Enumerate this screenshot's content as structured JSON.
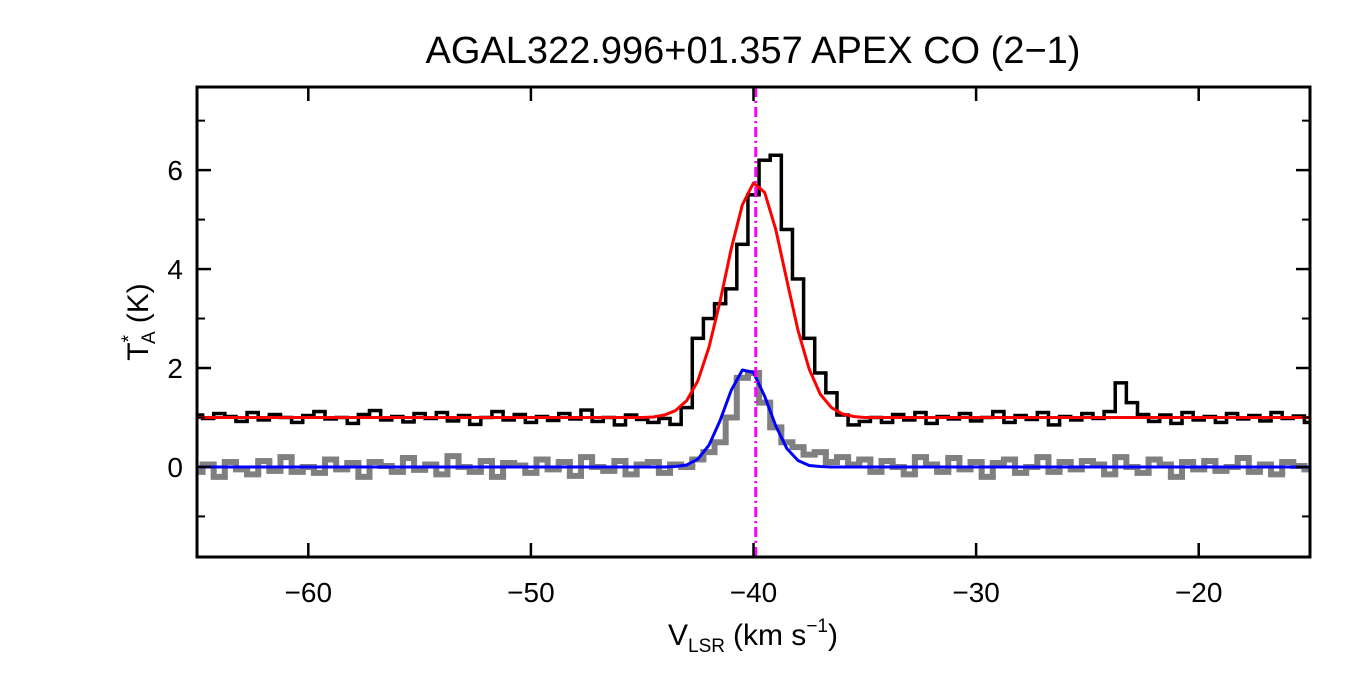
{
  "chart_data": {
    "type": "line",
    "title": "AGAL322.996+01.357  APEX CO (2−1)",
    "x_label": {
      "main": "V",
      "sub": "LSR",
      "unit": "(km s",
      "sup": "−1",
      "close": ")"
    },
    "y_label": {
      "main": "T",
      "sup": "*",
      "sub": "A",
      "unit": "(K)"
    },
    "xlim": [
      -65,
      -15
    ],
    "ylim": [
      -1.82,
      7.68
    ],
    "xticks": [
      {
        "value": -60,
        "label": "−60"
      },
      {
        "value": -50,
        "label": "−50"
      },
      {
        "value": -40,
        "label": "−40"
      },
      {
        "value": -30,
        "label": "−30"
      },
      {
        "value": -20,
        "label": "−20"
      }
    ],
    "yticks": [
      0,
      2,
      4,
      6
    ],
    "yticks_minor": [
      -1,
      1,
      3,
      5,
      7
    ],
    "x": [
      -65,
      -64.5,
      -64,
      -63.5,
      -63,
      -62.5,
      -62,
      -61.5,
      -61,
      -60.5,
      -60,
      -59.5,
      -59,
      -58.5,
      -58,
      -57.5,
      -57,
      -56.5,
      -56,
      -55.5,
      -55,
      -54.5,
      -54,
      -53.5,
      -53,
      -52.5,
      -52,
      -51.5,
      -51,
      -50.5,
      -50,
      -49.5,
      -49,
      -48.5,
      -48,
      -47.5,
      -47,
      -46.5,
      -46,
      -45.5,
      -45,
      -44.5,
      -44,
      -43.5,
      -43,
      -42.5,
      -42,
      -41.5,
      -41,
      -40.5,
      -40,
      -39.5,
      -39,
      -38.5,
      -38,
      -37.5,
      -37,
      -36.5,
      -36,
      -35.5,
      -35,
      -34.5,
      -34,
      -33.5,
      -33,
      -32.5,
      -32,
      -31.5,
      -31,
      -30.5,
      -30,
      -29.5,
      -29,
      -28.5,
      -28,
      -27.5,
      -27,
      -26.5,
      -26,
      -25.5,
      -25,
      -24.5,
      -24,
      -23.5,
      -23,
      -22.5,
      -22,
      -21.5,
      -21,
      -20.5,
      -20,
      -19.5,
      -19,
      -18.5,
      -18,
      -17.5,
      -17,
      -16.5,
      -16,
      -15.5,
      -15
    ],
    "series": [
      {
        "style": "step",
        "color": "#808080",
        "values": [
          -0.1,
          0.05,
          -0.2,
          0.1,
          -0.05,
          -0.15,
          0.12,
          -0.08,
          0.2,
          -0.1,
          0.0,
          -0.12,
          0.15,
          -0.05,
          0.08,
          -0.2,
          0.1,
          0.02,
          -0.1,
          0.18,
          -0.06,
          0.05,
          -0.15,
          0.22,
          0.0,
          -0.1,
          0.12,
          -0.2,
          0.08,
          0.03,
          -0.12,
          0.15,
          -0.05,
          0.1,
          -0.18,
          0.2,
          0.0,
          -0.08,
          0.12,
          -0.15,
          0.05,
          0.1,
          -0.12,
          0.05,
          0.0,
          0.15,
          0.3,
          0.5,
          1.0,
          1.8,
          1.9,
          1.3,
          0.8,
          0.5,
          0.4,
          0.25,
          0.3,
          0.1,
          0.2,
          0.05,
          0.15,
          -0.1,
          0.12,
          0.0,
          -0.15,
          0.2,
          0.05,
          -0.1,
          0.18,
          -0.05,
          0.1,
          -0.2,
          0.08,
          0.15,
          -0.12,
          0.0,
          0.2,
          -0.1,
          0.1,
          -0.05,
          0.12,
          0.05,
          -0.15,
          0.2,
          0.0,
          -0.12,
          0.15,
          0.05,
          -0.2,
          0.1,
          -0.05,
          0.12,
          -0.08,
          0.0,
          0.18,
          -0.1,
          0.05,
          -0.15,
          0.1,
          0.02,
          -0.05
        ]
      },
      {
        "style": "step",
        "color": "#000000",
        "values": [
          1.05,
          0.98,
          1.08,
          1.02,
          0.92,
          1.1,
          0.95,
          1.06,
          1.0,
          0.9,
          1.04,
          1.12,
          0.97,
          1.0,
          0.88,
          1.06,
          1.14,
          0.95,
          1.02,
          0.91,
          1.08,
          0.98,
          1.1,
          0.93,
          1.04,
          0.86,
          1.0,
          1.12,
          0.95,
          1.06,
          0.9,
          1.02,
          0.94,
          1.08,
          0.97,
          1.15,
          0.92,
          1.0,
          0.85,
          1.05,
          0.96,
          0.9,
          0.98,
          0.86,
          1.2,
          2.6,
          3.0,
          3.3,
          3.6,
          4.5,
          5.5,
          6.2,
          6.3,
          4.8,
          3.8,
          2.6,
          1.9,
          1.5,
          1.05,
          0.85,
          0.92,
          1.0,
          0.9,
          1.06,
          0.95,
          1.1,
          0.88,
          1.02,
          0.97,
          1.08,
          0.93,
          1.0,
          1.12,
          0.9,
          1.04,
          0.96,
          1.1,
          0.85,
          1.02,
          0.95,
          1.08,
          0.98,
          1.12,
          1.7,
          1.3,
          1.06,
          0.92,
          1.05,
          0.88,
          1.1,
          0.95,
          1.02,
          0.9,
          1.08,
          0.97,
          1.04,
          0.93,
          1.1,
          0.98,
          1.03,
          0.9
        ]
      },
      {
        "style": "line",
        "color": "#0000ff",
        "values": [
          0,
          0,
          0,
          0,
          0,
          0,
          0,
          0,
          0,
          0,
          0,
          0,
          0,
          0,
          0,
          0,
          0,
          0,
          0,
          0,
          0,
          0,
          0,
          0,
          0,
          0,
          0,
          0,
          0,
          0,
          0,
          0,
          0,
          0,
          0,
          0,
          0,
          0,
          0,
          0,
          0,
          0,
          0,
          0.01,
          0.04,
          0.16,
          0.44,
          0.94,
          1.55,
          1.96,
          1.91,
          1.43,
          0.83,
          0.37,
          0.13,
          0.03,
          0.01,
          0,
          0,
          0,
          0,
          0,
          0,
          0,
          0,
          0,
          0,
          0,
          0,
          0,
          0,
          0,
          0,
          0,
          0,
          0,
          0,
          0,
          0,
          0,
          0,
          0,
          0,
          0,
          0,
          0,
          0,
          0,
          0,
          0,
          0,
          0,
          0,
          0,
          0,
          0,
          0,
          0,
          0,
          0,
          0
        ]
      },
      {
        "style": "line",
        "color": "#ff0000",
        "values": [
          1,
          1,
          1,
          1,
          1,
          1,
          1,
          1,
          1,
          1,
          1,
          1,
          1,
          1,
          1,
          1,
          1,
          1,
          1,
          1,
          1,
          1,
          1,
          1,
          1,
          1,
          1,
          1,
          1,
          1,
          1,
          1,
          1,
          1,
          1,
          1,
          1,
          1,
          1,
          1,
          1,
          1.01,
          1.05,
          1.14,
          1.34,
          1.74,
          2.42,
          3.35,
          4.41,
          5.3,
          5.74,
          5.55,
          4.8,
          3.77,
          2.76,
          1.98,
          1.47,
          1.2,
          1.07,
          1.02,
          1,
          1,
          1,
          1,
          1,
          1,
          1,
          1,
          1,
          1,
          1,
          1,
          1,
          1,
          1,
          1,
          1,
          1,
          1,
          1,
          1,
          1,
          1,
          1,
          1,
          1,
          1,
          1,
          1,
          1,
          1,
          1,
          1,
          1,
          1,
          1,
          1,
          1,
          1,
          1,
          1
        ]
      }
    ],
    "vline": {
      "value": -39.9,
      "color": "#ff00ff"
    }
  }
}
